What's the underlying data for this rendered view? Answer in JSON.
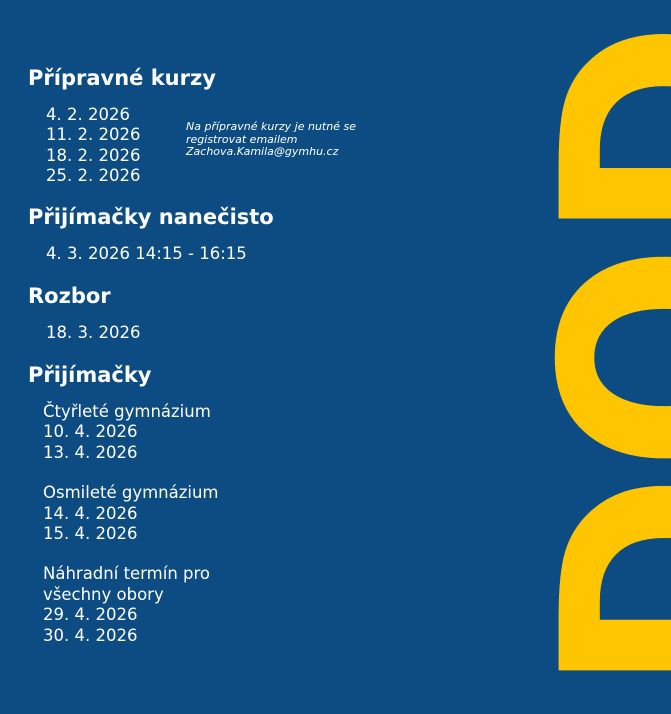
{
  "sections": [
    {
      "heading": "Přípravné kurzy",
      "items": [
        "4. 2. 2026",
        "11. 2. 2026",
        "18. 2. 2026",
        "25. 2. 2026"
      ],
      "note": [
        "Na přípravné kurzy je nutné se",
        "registrovat emailem",
        "Zachova.Kamila@gymhu.cz"
      ]
    },
    {
      "heading": "Přijímačky nanečisto",
      "items": [
        "4. 3. 2026 14:15 - 16:15"
      ]
    },
    {
      "heading": "Rozbor",
      "items": [
        "18. 3. 2026"
      ]
    },
    {
      "heading": "Přijímačky",
      "groups": [
        {
          "lines": [
            "Čtyřleté gymnázium",
            "10. 4. 2026",
            "13. 4. 2026"
          ]
        },
        {
          "lines": [
            "Osmileté gymnázium",
            "14. 4. 2026",
            "15. 4. 2026"
          ]
        },
        {
          "lines": [
            "Náhradní termín pro",
            "všechny obory",
            "29. 4. 2026",
            "30. 4. 2026"
          ]
        }
      ]
    }
  ],
  "side_text": "DOD"
}
